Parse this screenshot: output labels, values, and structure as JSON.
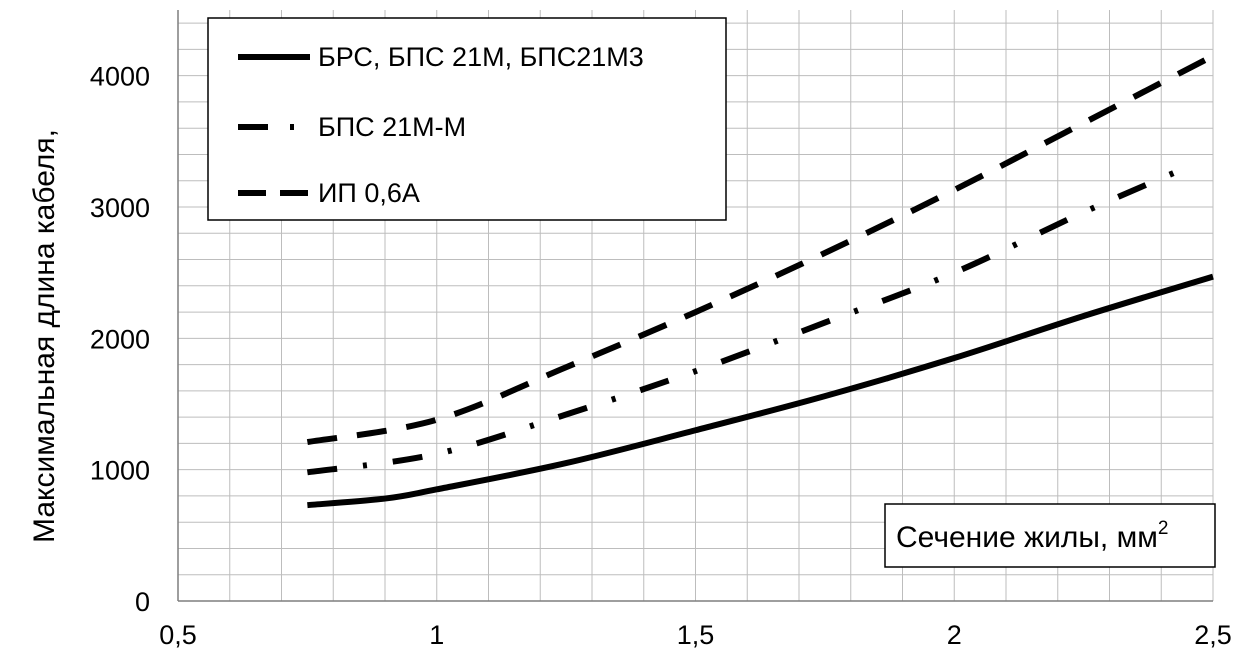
{
  "chart_data": {
    "type": "line",
    "title": "",
    "xlabel": "Сечение жилы, мм",
    "xlabel_superscript": "2",
    "ylabel": "Максимальная длина кабеля,",
    "xlim": [
      0.5,
      2.5
    ],
    "ylim": [
      0,
      4500
    ],
    "x_ticks": [
      "0,5",
      "1",
      "1,5",
      "2",
      "2,5"
    ],
    "y_ticks": [
      "0",
      "1000",
      "2000",
      "3000",
      "4000"
    ],
    "grid": true,
    "legend_position": "top-left",
    "series": [
      {
        "name": "БРС, БПС 21М, БПС21М3",
        "style": "solid",
        "color": "#000000",
        "x": [
          0.75,
          0.9,
          1.0,
          1.25,
          1.5,
          1.75,
          2.0,
          2.25,
          2.5
        ],
        "y": [
          730,
          780,
          850,
          1050,
          1300,
          1560,
          1850,
          2170,
          2470
        ]
      },
      {
        "name": "БПС 21М-М",
        "style": "dash-dot",
        "color": "#000000",
        "x": [
          0.75,
          1.0,
          1.25,
          1.5,
          1.75,
          2.0,
          2.25,
          2.46
        ],
        "y": [
          980,
          1120,
          1420,
          1750,
          2120,
          2500,
          2960,
          3320
        ]
      },
      {
        "name": "ИП 0,6А",
        "style": "dashed",
        "color": "#000000",
        "x": [
          0.75,
          1.0,
          1.25,
          1.5,
          1.75,
          2.0,
          2.25,
          2.5
        ],
        "y": [
          1210,
          1380,
          1780,
          2200,
          2650,
          3130,
          3640,
          4150
        ]
      }
    ]
  }
}
